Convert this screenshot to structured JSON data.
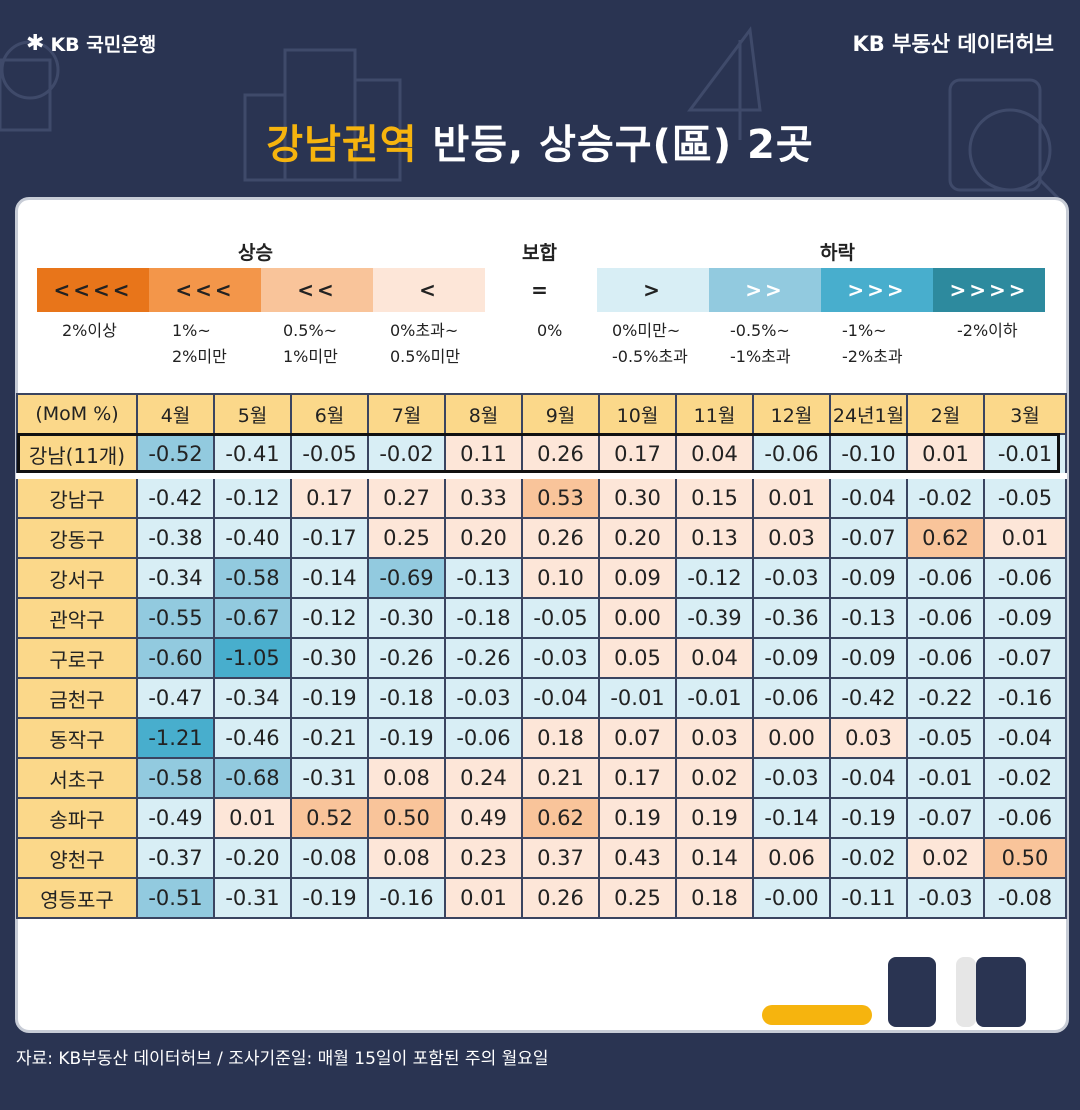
{
  "header": {
    "logo_text": "KB 국민은행",
    "brand_text": "KB 부동산  데이터허브",
    "title_highlight": "강남권역",
    "title_rest": "반등, 상승구(區) 2곳"
  },
  "legend": {
    "groups": [
      "상승",
      "보합",
      "하락"
    ],
    "cells": [
      {
        "symbol": "<<<<",
        "label1": "2%이상",
        "label2": "",
        "color": "#e8751a"
      },
      {
        "symbol": "<<<",
        "label1": "1%~",
        "label2": "2%미만",
        "color": "#f3964a"
      },
      {
        "symbol": "<<",
        "label1": "0.5%~",
        "label2": "1%미만",
        "color": "#f9c49a"
      },
      {
        "symbol": "<",
        "label1": "0%초과~",
        "label2": "0.5%미만",
        "color": "#fde6d8"
      },
      {
        "symbol": "=",
        "label1": "0%",
        "label2": "",
        "color": "#ffffff"
      },
      {
        "symbol": ">",
        "label1": "0%미만~",
        "label2": "-0.5%초과",
        "color": "#d8eef5"
      },
      {
        "symbol": ">>",
        "label1": "-0.5%~",
        "label2": "-1%초과",
        "color": "#92cadf"
      },
      {
        "symbol": ">>>",
        "label1": "-1%~",
        "label2": "-2%초과",
        "color": "#48aecd"
      },
      {
        "symbol": ">>>>",
        "label1": "-2%이하",
        "label2": "",
        "color": "#2d8a9e"
      }
    ]
  },
  "chart_data": {
    "type": "table",
    "title": "강남권역 반등, 상승구(區) 2곳",
    "corner_label": "(MoM %)",
    "columns": [
      "4월",
      "5월",
      "6월",
      "7월",
      "8월",
      "9월",
      "10월",
      "11월",
      "12월",
      "24년1월",
      "2월",
      "3월"
    ],
    "rows": [
      {
        "label": "강남(11개)",
        "values": [
          "-0.52",
          "-0.41",
          "-0.05",
          "-0.02",
          "0.11",
          "0.26",
          "0.17",
          "0.04",
          "-0.06",
          "-0.10",
          "0.01",
          "-0.01"
        ]
      },
      {
        "label": "강남구",
        "values": [
          "-0.42",
          "-0.12",
          "0.17",
          "0.27",
          "0.33",
          "0.53",
          "0.30",
          "0.15",
          "0.01",
          "-0.04",
          "-0.02",
          "-0.05"
        ]
      },
      {
        "label": "강동구",
        "values": [
          "-0.38",
          "-0.40",
          "-0.17",
          "0.25",
          "0.20",
          "0.26",
          "0.20",
          "0.13",
          "0.03",
          "-0.07",
          "0.62",
          "0.01"
        ]
      },
      {
        "label": "강서구",
        "values": [
          "-0.34",
          "-0.58",
          "-0.14",
          "-0.69",
          "-0.13",
          "0.10",
          "0.09",
          "-0.12",
          "-0.03",
          "-0.09",
          "-0.06",
          "-0.06"
        ]
      },
      {
        "label": "관악구",
        "values": [
          "-0.55",
          "-0.67",
          "-0.12",
          "-0.30",
          "-0.18",
          "-0.05",
          "0.00",
          "-0.39",
          "-0.36",
          "-0.13",
          "-0.06",
          "-0.09"
        ]
      },
      {
        "label": "구로구",
        "values": [
          "-0.60",
          "-1.05",
          "-0.30",
          "-0.26",
          "-0.26",
          "-0.03",
          "0.05",
          "0.04",
          "-0.09",
          "-0.09",
          "-0.06",
          "-0.07"
        ]
      },
      {
        "label": "금천구",
        "values": [
          "-0.47",
          "-0.34",
          "-0.19",
          "-0.18",
          "-0.03",
          "-0.04",
          "-0.01",
          "-0.01",
          "-0.06",
          "-0.42",
          "-0.22",
          "-0.16"
        ]
      },
      {
        "label": "동작구",
        "values": [
          "-1.21",
          "-0.46",
          "-0.21",
          "-0.19",
          "-0.06",
          "0.18",
          "0.07",
          "0.03",
          "0.00",
          "0.03",
          "-0.05",
          "-0.04"
        ]
      },
      {
        "label": "서초구",
        "values": [
          "-0.58",
          "-0.68",
          "-0.31",
          "0.08",
          "0.24",
          "0.21",
          "0.17",
          "0.02",
          "-0.03",
          "-0.04",
          "-0.01",
          "-0.02"
        ]
      },
      {
        "label": "송파구",
        "values": [
          "-0.49",
          "0.01",
          "0.52",
          "0.50",
          "0.49",
          "0.62",
          "0.19",
          "0.19",
          "-0.14",
          "-0.19",
          "-0.07",
          "-0.06"
        ]
      },
      {
        "label": "양천구",
        "values": [
          "-0.37",
          "-0.20",
          "-0.08",
          "0.08",
          "0.23",
          "0.37",
          "0.43",
          "0.14",
          "0.06",
          "-0.02",
          "0.02",
          "0.50"
        ]
      },
      {
        "label": "영등포구",
        "values": [
          "-0.51",
          "-0.31",
          "-0.19",
          "-0.16",
          "0.01",
          "0.26",
          "0.25",
          "0.18",
          "-0.00",
          "-0.11",
          "-0.03",
          "-0.08"
        ]
      }
    ]
  },
  "footer": {
    "source": "자료: KB부동산 데이터허브 / 조사기준일: 매월 15일이 포함된 주의 월요일"
  }
}
